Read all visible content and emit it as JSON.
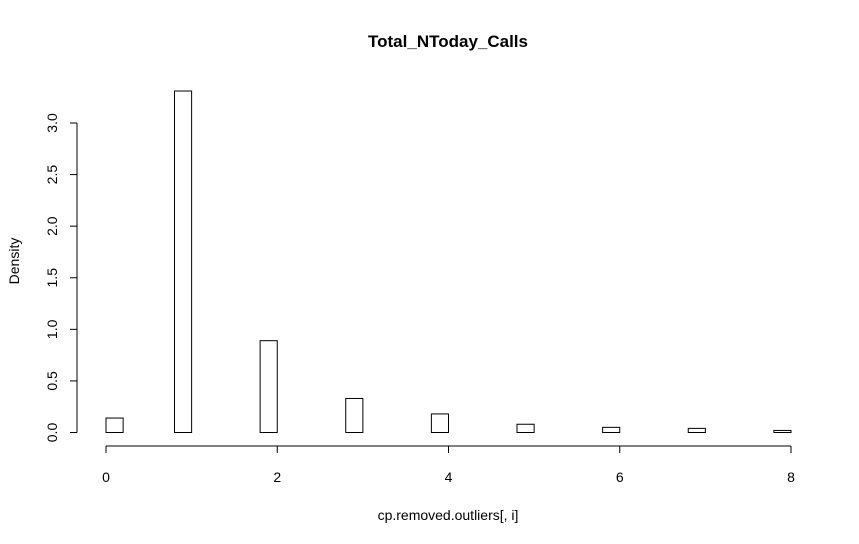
{
  "chart_data": {
    "type": "bar",
    "title": "Total_NToday_Calls",
    "xlabel": "cp.removed.outliers[, i]",
    "ylabel": "Density",
    "xlim": [
      0,
      8
    ],
    "ylim": [
      0,
      3.3
    ],
    "x_ticks": [
      0,
      2,
      4,
      6,
      8
    ],
    "x_tick_labels": [
      "0",
      "2",
      "4",
      "6",
      "8"
    ],
    "y_ticks": [
      0,
      0.5,
      1.0,
      1.5,
      2.0,
      2.5,
      3.0
    ],
    "y_tick_labels": [
      "0.0",
      "0.5",
      "1.0",
      "1.5",
      "2.0",
      "2.5",
      "3.0"
    ],
    "grid": false,
    "bar_fill": "#ffffff",
    "bar_stroke": "#000000",
    "bins": [
      {
        "start": 0.0,
        "end": 0.2,
        "density": 0.14
      },
      {
        "start": 0.8,
        "end": 1.0,
        "density": 3.31
      },
      {
        "start": 1.8,
        "end": 2.0,
        "density": 0.89
      },
      {
        "start": 2.8,
        "end": 3.0,
        "density": 0.33
      },
      {
        "start": 3.8,
        "end": 4.0,
        "density": 0.18
      },
      {
        "start": 4.8,
        "end": 5.0,
        "density": 0.08
      },
      {
        "start": 5.8,
        "end": 6.0,
        "density": 0.05
      },
      {
        "start": 6.8,
        "end": 7.0,
        "density": 0.04
      },
      {
        "start": 7.8,
        "end": 8.0,
        "density": 0.02
      }
    ]
  }
}
